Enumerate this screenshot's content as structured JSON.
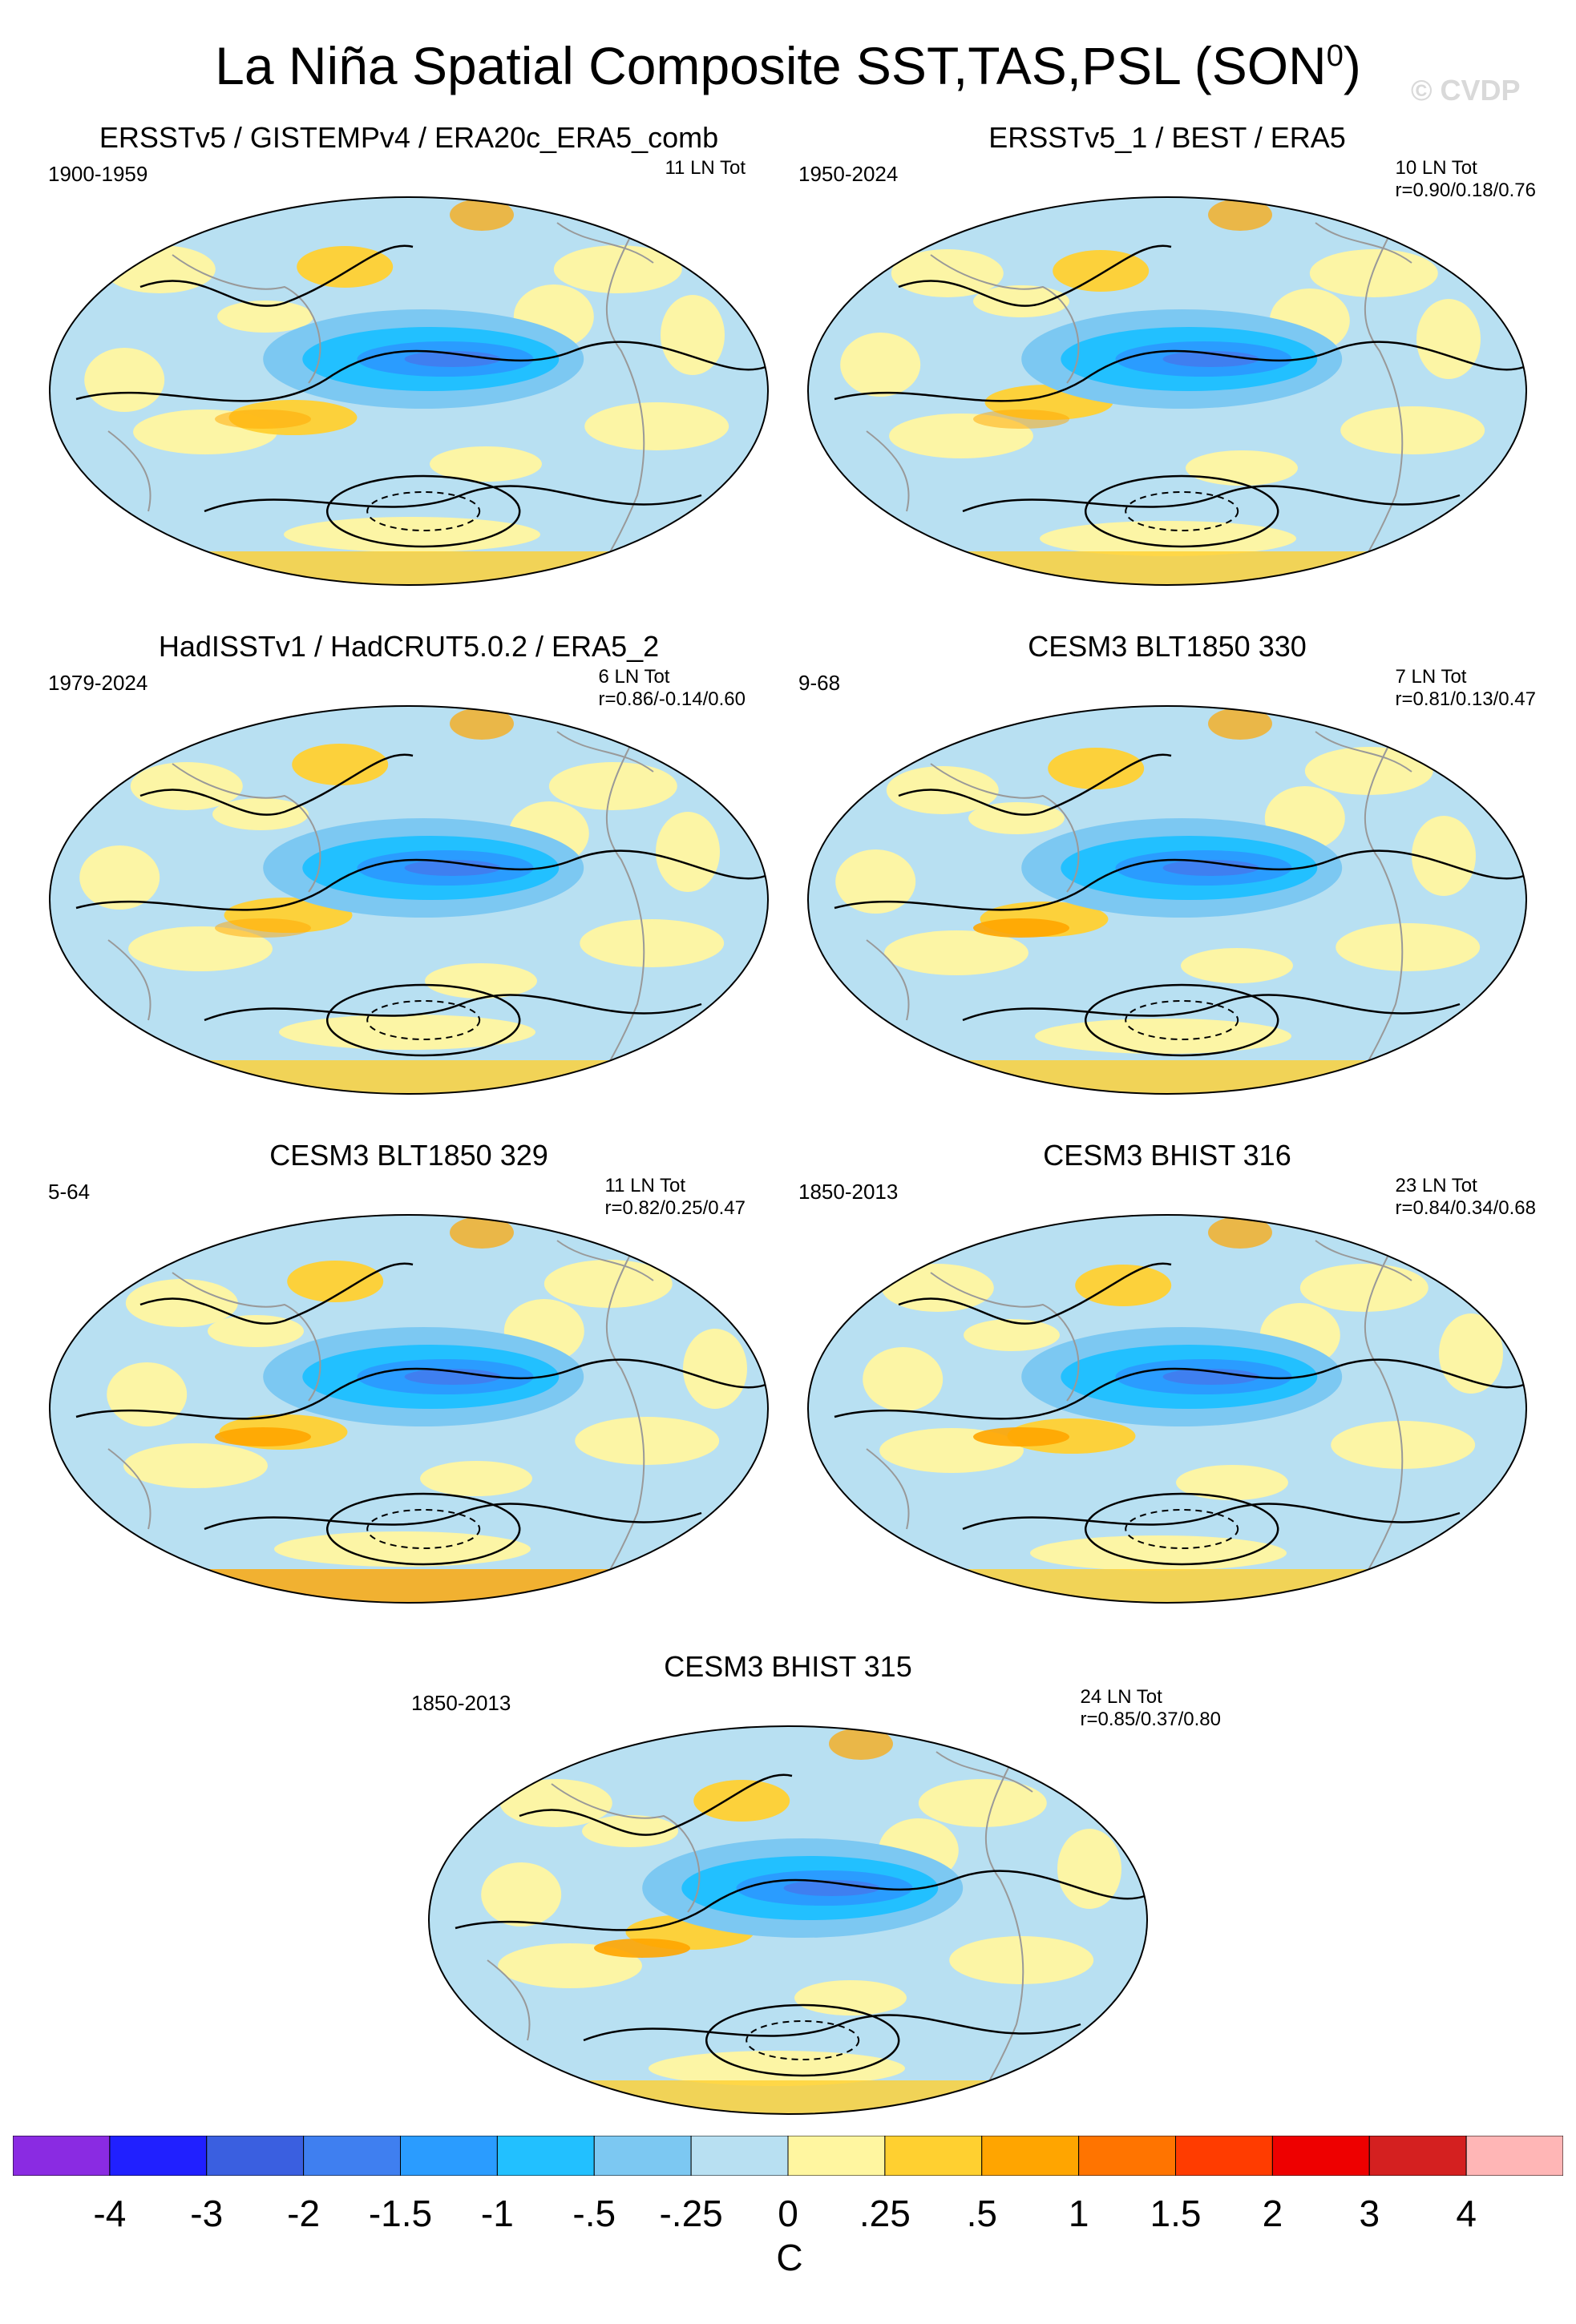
{
  "figure": {
    "title_main": "La Niña Spatial Composite SST,TAS,PSL (SON",
    "title_sup": "0",
    "title_end": ")",
    "watermark": "© CVDP"
  },
  "panels": [
    {
      "title": "ERSSTv5 / GISTEMPv4 / ERA20c_ERA5_comb",
      "years": "1900-1959",
      "count": "11 LN Tot",
      "corr": ""
    },
    {
      "title": "ERSSTv5_1 / BEST / ERA5",
      "years": "1950-2024",
      "count": "10 LN Tot",
      "corr": "r=0.90/0.18/0.76"
    },
    {
      "title": "HadISSTv1 / HadCRUT5.0.2 / ERA5_2",
      "years": "1979-2024",
      "count": "6 LN Tot",
      "corr": "r=0.86/-0.14/0.60"
    },
    {
      "title": "CESM3 BLT1850 330",
      "years": "9-68",
      "count": "7 LN Tot",
      "corr": "r=0.81/0.13/0.47"
    },
    {
      "title": "CESM3 BLT1850 329",
      "years": "5-64",
      "count": "11 LN Tot",
      "corr": "r=0.82/0.25/0.47"
    },
    {
      "title": "CESM3 BHIST 316",
      "years": "1850-2013",
      "count": "23 LN Tot",
      "corr": "r=0.84/0.34/0.68"
    },
    {
      "title": "CESM3 BHIST 315",
      "years": "1850-2013",
      "count": "24 LN Tot",
      "corr": "r=0.85/0.37/0.80"
    }
  ],
  "colorbar": {
    "unit": "C",
    "colors": [
      "#8a2be2",
      "#2020ff",
      "#3a5fe0",
      "#3f7ff0",
      "#2a9cff",
      "#22c0ff",
      "#7cc8f2",
      "#b8e0f2",
      "#fff6a0",
      "#ffd030",
      "#ffa500",
      "#ff7400",
      "#ff3c00",
      "#ee0000",
      "#d42020",
      "#ffb6b6"
    ],
    "labels": [
      "-4",
      "-3",
      "-2",
      "-1.5",
      "-1",
      "-.5",
      "-.25",
      "0",
      ".25",
      ".5",
      "1",
      "1.5",
      "2",
      "3",
      "4"
    ]
  },
  "palette": {
    "ocean_base": "#b8e0f2",
    "cold_mid": "#7cc8f2",
    "cold_strong": "#22c0ff",
    "cold_core": "#2a9cff",
    "cold_max": "#3f7ff0",
    "warm_light": "#fff6a0",
    "warm_mid": "#ffd030",
    "warm_strong": "#ffa500",
    "missing": "#ffffff",
    "contour": "#000000",
    "coast": "#999999"
  }
}
